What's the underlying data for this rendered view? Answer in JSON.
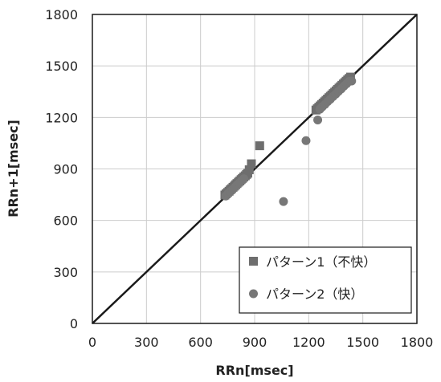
{
  "chart_data": {
    "type": "scatter",
    "xlabel": "RRn[msec]",
    "ylabel": "RRn+1[msec]",
    "xlim": [
      0,
      1800
    ],
    "ylim": [
      0,
      1800
    ],
    "xticks": [
      0,
      300,
      600,
      900,
      1200,
      1500,
      1800
    ],
    "yticks": [
      0,
      300,
      600,
      900,
      1200,
      1500,
      1800
    ],
    "grid": true,
    "legend_position": "bottom-right",
    "identity_line": true,
    "colors": {
      "series1": "#6e6e6e",
      "series2": "#777777",
      "line": "#1a1a1a",
      "grid": "#cccccc"
    },
    "series": [
      {
        "name": "パターン1（不快）",
        "marker": "square",
        "x": [
          735,
          742,
          750,
          758,
          765,
          772,
          780,
          788,
          795,
          802,
          810,
          818,
          825,
          832,
          840,
          848,
          855,
          862,
          870,
          882,
          928,
          1240,
          1248,
          1256,
          1264,
          1272,
          1280,
          1288,
          1296,
          1304,
          1312,
          1320,
          1328,
          1336,
          1344,
          1352,
          1360,
          1368,
          1376,
          1384,
          1392,
          1400,
          1408,
          1416,
          1424,
          1432
        ],
        "y": [
          748,
          755,
          763,
          770,
          778,
          785,
          793,
          800,
          808,
          815,
          823,
          830,
          838,
          845,
          853,
          860,
          868,
          875,
          895,
          930,
          1035,
          1243,
          1251,
          1259,
          1267,
          1275,
          1283,
          1291,
          1299,
          1307,
          1315,
          1323,
          1331,
          1339,
          1347,
          1355,
          1363,
          1371,
          1379,
          1387,
          1395,
          1403,
          1411,
          1419,
          1427,
          1435
        ]
      },
      {
        "name": "パターン2（快）",
        "marker": "circle",
        "x": [
          740,
          752,
          765,
          778,
          790,
          802,
          815,
          828,
          840,
          1060,
          1185,
          1250,
          1262,
          1275,
          1290,
          1305,
          1320,
          1335,
          1350,
          1365,
          1380,
          1395,
          1410,
          1425,
          1438
        ],
        "y": [
          742,
          756,
          768,
          781,
          793,
          806,
          818,
          831,
          843,
          710,
          1065,
          1185,
          1248,
          1262,
          1276,
          1292,
          1306,
          1322,
          1336,
          1352,
          1366,
          1382,
          1396,
          1410,
          1412
        ]
      }
    ]
  }
}
